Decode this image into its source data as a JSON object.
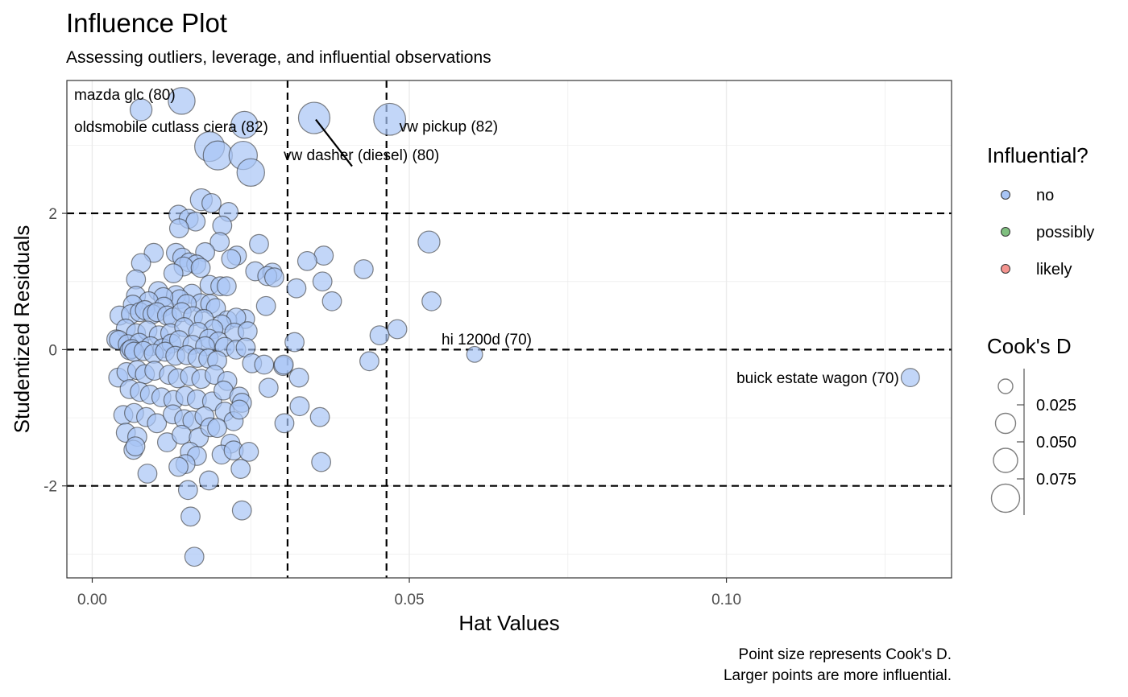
{
  "chart_data": {
    "type": "scatter",
    "title": "Influence Plot",
    "subtitle": "Assessing outliers, leverage, and influential observations",
    "xlabel": "Hat Values",
    "ylabel": "Studentized Residuals",
    "xlim": [
      -0.004,
      0.1355
    ],
    "ylim": [
      -3.35,
      3.95
    ],
    "x_ticks": [
      {
        "value": 0.0,
        "label": "0.00"
      },
      {
        "value": 0.05,
        "label": "0.05"
      },
      {
        "value": 0.1,
        "label": "0.10"
      }
    ],
    "y_ticks": [
      {
        "value": -2,
        "label": "-2"
      },
      {
        "value": 0,
        "label": "0"
      },
      {
        "value": 2,
        "label": "2"
      }
    ],
    "grid": true,
    "reference_lines": {
      "horizontal": [
        -2,
        0,
        2
      ],
      "vertical": [
        0.0308,
        0.0464
      ]
    },
    "labeled_points": [
      {
        "name": "mazda glc  (80)",
        "x": 0.0141,
        "y": 3.65,
        "cooks_d": 0.045
      },
      {
        "name": "oldsmobile cutlass ciera (82)",
        "x": 0.024,
        "y": 3.3,
        "cooks_d": 0.045
      },
      {
        "name": "vw dasher (diesel) (80)",
        "x": 0.035,
        "y": 3.4,
        "cooks_d": 0.078
      },
      {
        "name": "vw pickup  (82)",
        "x": 0.0469,
        "y": 3.38,
        "cooks_d": 0.082
      },
      {
        "name": "hi 1200d  (70)",
        "x": 0.0603,
        "y": -0.07,
        "cooks_d": 0.003
      },
      {
        "name": "buick estate wagon (70)",
        "x": 0.129,
        "y": -0.41,
        "cooks_d": 0.008
      }
    ],
    "points": [
      [
        0.0077,
        3.52,
        0.02
      ],
      [
        0.0185,
        2.98,
        0.065
      ],
      [
        0.0198,
        2.85,
        0.06
      ],
      [
        0.0238,
        2.85,
        0.055
      ],
      [
        0.025,
        2.6,
        0.05
      ],
      [
        0.0172,
        2.2,
        0.02
      ],
      [
        0.0188,
        2.15,
        0.01
      ],
      [
        0.0215,
        2.02,
        0.01
      ],
      [
        0.0136,
        1.98,
        0.01
      ],
      [
        0.0152,
        1.92,
        0.01
      ],
      [
        0.0163,
        1.88,
        0.01
      ],
      [
        0.0205,
        1.82,
        0.01
      ],
      [
        0.0137,
        1.78,
        0.01
      ],
      [
        0.0263,
        1.55,
        0.01
      ],
      [
        0.0201,
        1.58,
        0.01
      ],
      [
        0.0531,
        1.58,
        0.02
      ],
      [
        0.0132,
        1.42,
        0.01
      ],
      [
        0.0097,
        1.42,
        0.01
      ],
      [
        0.0178,
        1.43,
        0.01
      ],
      [
        0.0228,
        1.38,
        0.01
      ],
      [
        0.0365,
        1.38,
        0.01
      ],
      [
        0.0142,
        1.35,
        0.01
      ],
      [
        0.0219,
        1.33,
        0.01
      ],
      [
        0.0339,
        1.3,
        0.01
      ],
      [
        0.0153,
        1.28,
        0.01
      ],
      [
        0.0077,
        1.27,
        0.01
      ],
      [
        0.0164,
        1.25,
        0.01
      ],
      [
        0.0144,
        1.22,
        0.01
      ],
      [
        0.0171,
        1.2,
        0.01
      ],
      [
        0.0428,
        1.18,
        0.01
      ],
      [
        0.0128,
        1.12,
        0.01
      ],
      [
        0.0257,
        1.15,
        0.01
      ],
      [
        0.0284,
        1.13,
        0.01
      ],
      [
        0.0276,
        1.08,
        0.01
      ],
      [
        0.0287,
        1.06,
        0.01
      ],
      [
        0.0069,
        1.03,
        0.01
      ],
      [
        0.0363,
        1.0,
        0.01
      ],
      [
        0.0185,
        0.95,
        0.01
      ],
      [
        0.0202,
        0.93,
        0.01
      ],
      [
        0.0212,
        0.93,
        0.01
      ],
      [
        0.0322,
        0.9,
        0.01
      ],
      [
        0.0104,
        0.86,
        0.01
      ],
      [
        0.0157,
        0.82,
        0.01
      ],
      [
        0.0132,
        0.8,
        0.01
      ],
      [
        0.0069,
        0.79,
        0.01
      ],
      [
        0.0138,
        0.74,
        0.01
      ],
      [
        0.0112,
        0.77,
        0.01
      ],
      [
        0.0089,
        0.71,
        0.01
      ],
      [
        0.0378,
        0.71,
        0.01
      ],
      [
        0.0535,
        0.71,
        0.01
      ],
      [
        0.0171,
        0.68,
        0.01
      ],
      [
        0.0149,
        0.67,
        0.01
      ],
      [
        0.0186,
        0.67,
        0.01
      ],
      [
        0.0064,
        0.66,
        0.01
      ],
      [
        0.0113,
        0.63,
        0.01
      ],
      [
        0.0274,
        0.64,
        0.01
      ],
      [
        0.0195,
        0.61,
        0.01
      ],
      [
        0.0043,
        0.5,
        0.01
      ],
      [
        0.0061,
        0.52,
        0.01
      ],
      [
        0.0075,
        0.55,
        0.01
      ],
      [
        0.0083,
        0.58,
        0.01
      ],
      [
        0.0095,
        0.52,
        0.01
      ],
      [
        0.0102,
        0.55,
        0.01
      ],
      [
        0.0118,
        0.5,
        0.01
      ],
      [
        0.0127,
        0.47,
        0.01
      ],
      [
        0.0141,
        0.55,
        0.01
      ],
      [
        0.0159,
        0.49,
        0.01
      ],
      [
        0.0176,
        0.45,
        0.01
      ],
      [
        0.0241,
        0.45,
        0.01
      ],
      [
        0.0213,
        0.43,
        0.01
      ],
      [
        0.0227,
        0.47,
        0.01
      ],
      [
        0.0204,
        0.37,
        0.01
      ],
      [
        0.0191,
        0.3,
        0.01
      ],
      [
        0.0481,
        0.3,
        0.01
      ],
      [
        0.0224,
        0.25,
        0.01
      ],
      [
        0.0245,
        0.27,
        0.01
      ],
      [
        0.0453,
        0.21,
        0.01
      ],
      [
        0.0053,
        0.31,
        0.01
      ],
      [
        0.0069,
        0.24,
        0.01
      ],
      [
        0.0087,
        0.28,
        0.01
      ],
      [
        0.0105,
        0.21,
        0.01
      ],
      [
        0.0123,
        0.24,
        0.01
      ],
      [
        0.0145,
        0.33,
        0.01
      ],
      [
        0.0167,
        0.26,
        0.01
      ],
      [
        0.0184,
        0.16,
        0.01
      ],
      [
        0.0199,
        0.12,
        0.01
      ],
      [
        0.0038,
        0.15,
        0.01
      ],
      [
        0.0042,
        0.14,
        0.01
      ],
      [
        0.0056,
        0.08,
        0.01
      ],
      [
        0.0074,
        0.1,
        0.01
      ],
      [
        0.0092,
        0.05,
        0.01
      ],
      [
        0.0111,
        0.02,
        0.01
      ],
      [
        0.0125,
        0.09,
        0.01
      ],
      [
        0.0137,
        0.14,
        0.01
      ],
      [
        0.0158,
        0.07,
        0.01
      ],
      [
        0.0178,
        0.05,
        0.01
      ],
      [
        0.0209,
        0.04,
        0.01
      ],
      [
        0.0227,
        0.0,
        0.01
      ],
      [
        0.0242,
        0.03,
        0.01
      ],
      [
        0.0319,
        0.11,
        0.01
      ],
      [
        0.0059,
        -0.01,
        0.01
      ],
      [
        0.0062,
        0.01,
        0.01
      ],
      [
        0.0066,
        -0.03,
        0.01
      ],
      [
        0.0081,
        -0.02,
        0.01
      ],
      [
        0.0097,
        -0.06,
        0.01
      ],
      [
        0.0115,
        -0.03,
        0.01
      ],
      [
        0.0131,
        -0.09,
        0.01
      ],
      [
        0.0149,
        -0.08,
        0.01
      ],
      [
        0.0166,
        -0.12,
        0.01
      ],
      [
        0.0183,
        -0.13,
        0.01
      ],
      [
        0.0197,
        -0.16,
        0.01
      ],
      [
        0.0252,
        -0.2,
        0.01
      ],
      [
        0.0271,
        -0.22,
        0.01
      ],
      [
        0.0301,
        -0.24,
        0.01
      ],
      [
        0.0302,
        -0.22,
        0.01
      ],
      [
        0.0437,
        -0.17,
        0.01
      ],
      [
        0.0041,
        -0.41,
        0.01
      ],
      [
        0.0054,
        -0.33,
        0.01
      ],
      [
        0.0071,
        -0.3,
        0.01
      ],
      [
        0.0083,
        -0.36,
        0.01
      ],
      [
        0.0098,
        -0.31,
        0.01
      ],
      [
        0.0121,
        -0.37,
        0.01
      ],
      [
        0.0135,
        -0.42,
        0.01
      ],
      [
        0.0154,
        -0.39,
        0.01
      ],
      [
        0.0172,
        -0.43,
        0.01
      ],
      [
        0.0193,
        -0.37,
        0.01
      ],
      [
        0.0213,
        -0.46,
        0.01
      ],
      [
        0.0326,
        -0.41,
        0.01
      ],
      [
        0.0059,
        -0.58,
        0.01
      ],
      [
        0.0075,
        -0.62,
        0.01
      ],
      [
        0.0091,
        -0.66,
        0.01
      ],
      [
        0.0109,
        -0.7,
        0.01
      ],
      [
        0.0128,
        -0.74,
        0.01
      ],
      [
        0.0147,
        -0.68,
        0.01
      ],
      [
        0.0165,
        -0.73,
        0.01
      ],
      [
        0.0189,
        -0.76,
        0.01
      ],
      [
        0.0207,
        -0.6,
        0.01
      ],
      [
        0.0232,
        -0.69,
        0.01
      ],
      [
        0.0236,
        -0.78,
        0.01
      ],
      [
        0.0278,
        -0.56,
        0.01
      ],
      [
        0.0327,
        -0.83,
        0.01
      ],
      [
        0.0049,
        -0.96,
        0.01
      ],
      [
        0.0066,
        -0.93,
        0.01
      ],
      [
        0.0085,
        -0.99,
        0.01
      ],
      [
        0.0102,
        -1.08,
        0.01
      ],
      [
        0.0127,
        -0.95,
        0.01
      ],
      [
        0.0145,
        -1.02,
        0.01
      ],
      [
        0.0158,
        -1.04,
        0.01
      ],
      [
        0.0177,
        -0.98,
        0.01
      ],
      [
        0.0209,
        -0.91,
        0.01
      ],
      [
        0.0223,
        -1.05,
        0.01
      ],
      [
        0.0232,
        -0.88,
        0.01
      ],
      [
        0.0303,
        -1.08,
        0.01
      ],
      [
        0.0359,
        -0.99,
        0.01
      ],
      [
        0.0053,
        -1.22,
        0.01
      ],
      [
        0.0071,
        -1.28,
        0.01
      ],
      [
        0.0118,
        -1.36,
        0.01
      ],
      [
        0.0141,
        -1.25,
        0.01
      ],
      [
        0.0168,
        -1.29,
        0.01
      ],
      [
        0.0186,
        -1.14,
        0.01
      ],
      [
        0.0197,
        -1.15,
        0.01
      ],
      [
        0.0218,
        -1.38,
        0.01
      ],
      [
        0.0065,
        -1.47,
        0.01
      ],
      [
        0.0068,
        -1.42,
        0.01
      ],
      [
        0.0154,
        -1.5,
        0.01
      ],
      [
        0.0165,
        -1.56,
        0.01
      ],
      [
        0.0204,
        -1.54,
        0.01
      ],
      [
        0.0223,
        -1.48,
        0.01
      ],
      [
        0.0247,
        -1.5,
        0.01
      ],
      [
        0.0361,
        -1.65,
        0.01
      ],
      [
        0.0147,
        -1.68,
        0.01
      ],
      [
        0.0136,
        -1.72,
        0.01
      ],
      [
        0.0234,
        -1.75,
        0.01
      ],
      [
        0.0087,
        -1.82,
        0.01
      ],
      [
        0.0184,
        -1.92,
        0.01
      ],
      [
        0.0151,
        -2.06,
        0.01
      ],
      [
        0.0236,
        -2.36,
        0.01
      ],
      [
        0.0155,
        -2.45,
        0.01
      ],
      [
        0.0161,
        -3.04,
        0.01
      ]
    ]
  },
  "legend": {
    "influential": {
      "title": "Influential?",
      "items": [
        {
          "label": "no",
          "color": "#a8c5f5"
        },
        {
          "label": "possibly",
          "color": "#7fbf7f"
        },
        {
          "label": "likely",
          "color": "#f5948f"
        }
      ]
    },
    "cooks_d": {
      "title": "Cook's D",
      "labels": [
        "0.025",
        "0.050",
        "0.075"
      ]
    }
  },
  "caption": {
    "line1": "Point size represents Cook's D.",
    "line2": "Larger points are more influential."
  },
  "colors": {
    "point_fill": "#a8c5f5",
    "point_stroke": "#333333",
    "panel_border": "#333333",
    "grid": "#ebebeb"
  }
}
